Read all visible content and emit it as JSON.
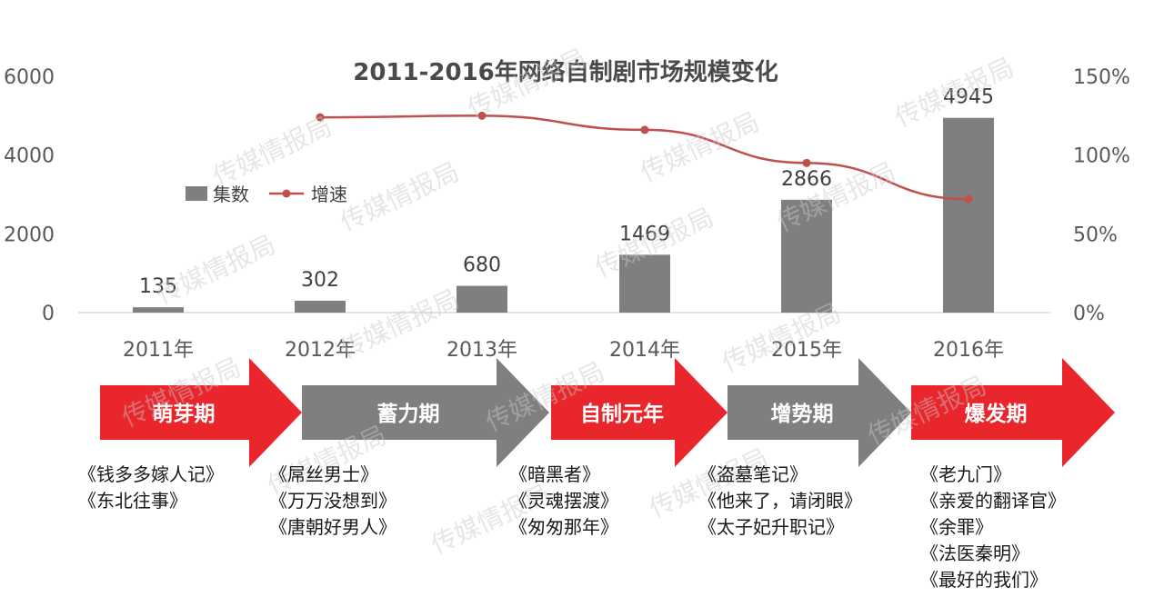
{
  "chart_data": {
    "type": "bar",
    "title": "2011-2016年网络自制剧市场规模变化",
    "categories": [
      "2011年",
      "2012年",
      "2013年",
      "2014年",
      "2015年",
      "2016年"
    ],
    "series": [
      {
        "name": "集数",
        "type": "bar",
        "axis": "left",
        "color": "#7f7f7f",
        "values": [
          135,
          302,
          680,
          1469,
          2866,
          4945
        ]
      },
      {
        "name": "增速",
        "type": "line",
        "axis": "right",
        "color": "#c0504d",
        "values": [
          null,
          124,
          125,
          116,
          95,
          72
        ]
      }
    ],
    "y_left": {
      "ylim": [
        0,
        6000
      ],
      "ticks": [
        "0",
        "2000",
        "4000",
        "6000"
      ]
    },
    "y_right": {
      "ylim": [
        0,
        150
      ],
      "ticks": [
        "0%",
        "50%",
        "100%",
        "150%"
      ]
    },
    "legend": {
      "placement": "upper-left"
    },
    "grid": false
  },
  "stages": [
    {
      "label": "萌芽期",
      "color": "#e8262c"
    },
    {
      "label": "蓄力期",
      "color": "#7f7f7f"
    },
    {
      "label": "自制元年",
      "color": "#e8262c"
    },
    {
      "label": "增势期",
      "color": "#7f7f7f"
    },
    {
      "label": "爆发期",
      "color": "#e8262c"
    }
  ],
  "shows": [
    [
      "《钱多多嫁人记》",
      "《东北往事》"
    ],
    [
      "《屌丝男士》",
      "《万万没想到》",
      "《唐朝好男人》"
    ],
    [
      "《暗黑者》",
      "《灵魂摆渡》",
      "《匆匆那年》"
    ],
    [
      "《盗墓笔记》",
      "《他来了，请闭眼》",
      "《太子妃升职记》"
    ],
    [
      "《老九门》",
      "《亲爱的翻译官》",
      "《余罪》",
      "《法医秦明》",
      "《最好的我们》"
    ]
  ],
  "watermark": "传媒情报局"
}
